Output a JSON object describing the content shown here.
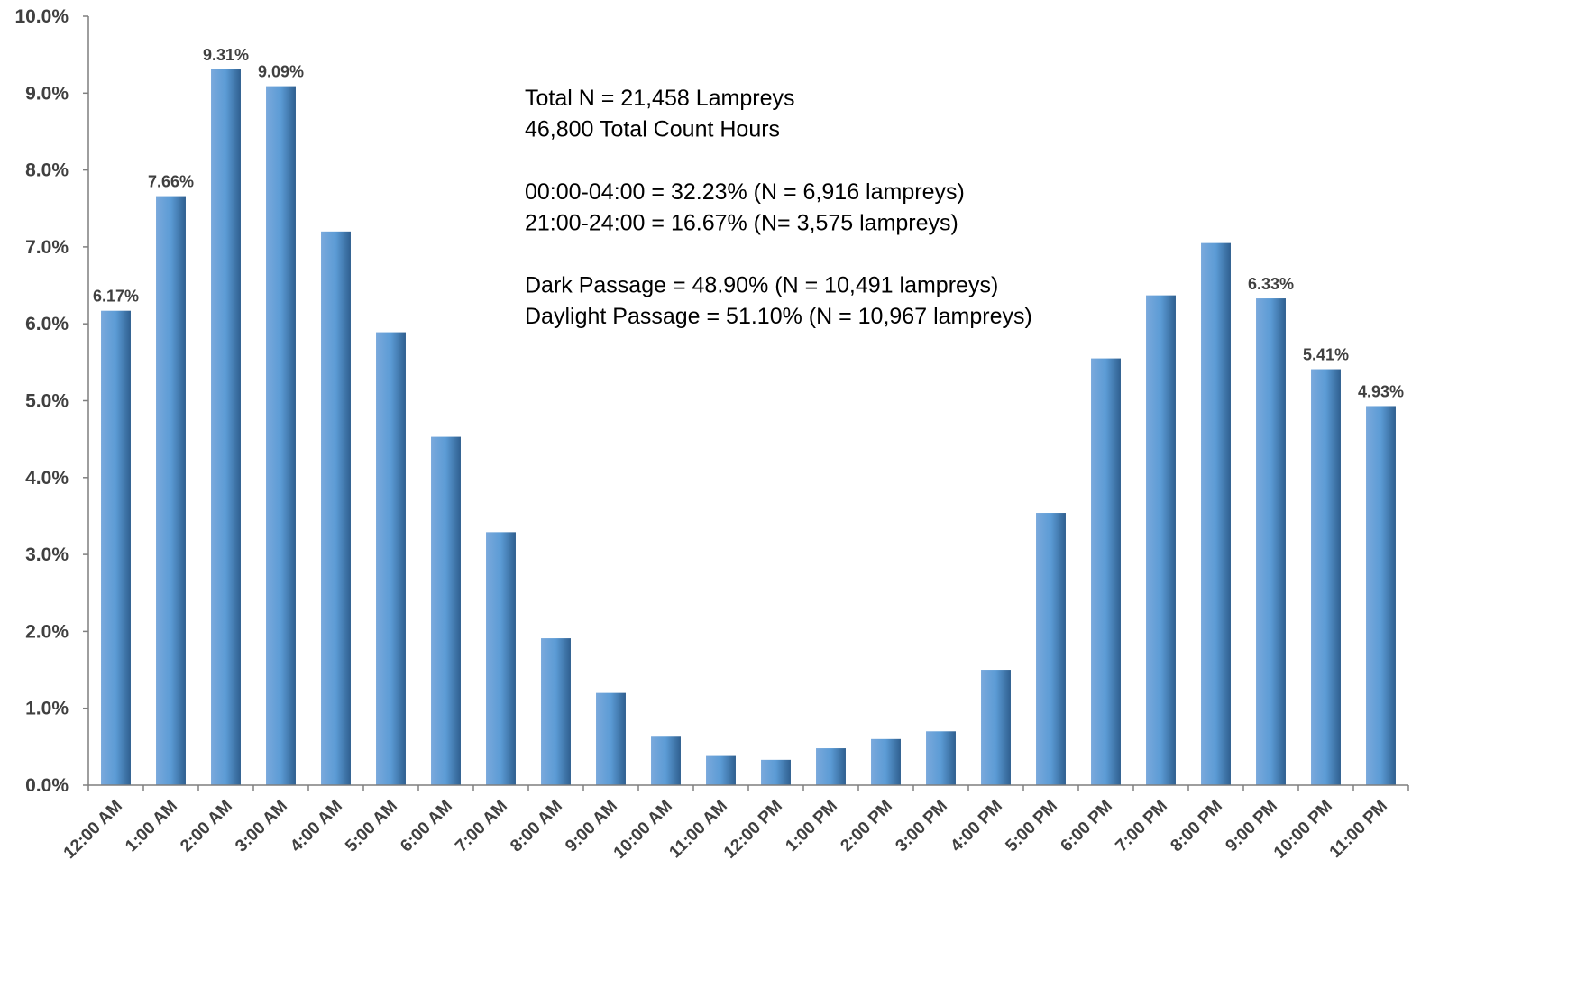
{
  "chart_data": {
    "type": "bar",
    "title": "",
    "xlabel": "",
    "ylabel": "",
    "ylim": [
      0,
      10
    ],
    "y_tick_values": [
      0,
      1,
      2,
      3,
      4,
      5,
      6,
      7,
      8,
      9,
      10
    ],
    "y_tick_labels": [
      "0.0%",
      "1.0%",
      "2.0%",
      "3.0%",
      "4.0%",
      "5.0%",
      "6.0%",
      "7.0%",
      "8.0%",
      "9.0%",
      "10.0%"
    ],
    "grid": false,
    "legend": "none",
    "categories": [
      "12:00 AM",
      "1:00 AM",
      "2:00 AM",
      "3:00 AM",
      "4:00 AM",
      "5:00 AM",
      "6:00 AM",
      "7:00 AM",
      "8:00 AM",
      "9:00 AM",
      "10:00 AM",
      "11:00 AM",
      "12:00 PM",
      "1:00 PM",
      "2:00 PM",
      "3:00 PM",
      "4:00 PM",
      "5:00 PM",
      "6:00 PM",
      "7:00 PM",
      "8:00 PM",
      "9:00 PM",
      "10:00 PM",
      "11:00 PM"
    ],
    "values": [
      6.17,
      7.66,
      9.31,
      9.09,
      7.2,
      5.89,
      4.53,
      3.29,
      1.91,
      1.2,
      0.63,
      0.38,
      0.33,
      0.48,
      0.6,
      0.7,
      1.5,
      3.54,
      5.55,
      6.37,
      7.05,
      6.33,
      5.41,
      4.93
    ],
    "data_labels": [
      "6.17%",
      "7.66%",
      "9.31%",
      "9.09%",
      "",
      "",
      "",
      "",
      "",
      "",
      "",
      "",
      "",
      "",
      "",
      "",
      "",
      "",
      "",
      "",
      "",
      "6.33%",
      "5.41%",
      "4.93%"
    ],
    "bar_color": "#5b9bd5",
    "annotation_lines": [
      "Total N = 21,458 Lampreys",
      "46,800 Total Count Hours",
      "",
      "00:00-04:00 = 32.23% (N = 6,916 lampreys)",
      "21:00-24:00 = 16.67% (N= 3,575 lampreys)",
      "",
      "Dark Passage = 48.90% (N = 10,491 lampreys)",
      "Daylight Passage = 51.10% (N = 10,967 lampreys)"
    ]
  }
}
